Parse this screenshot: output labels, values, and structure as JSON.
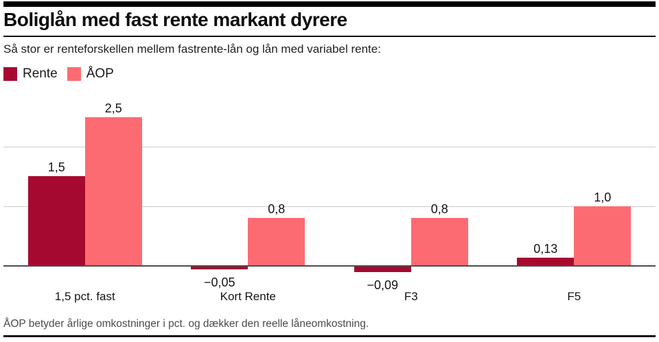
{
  "header": {
    "title": "Boliglån med fast rente markant dyrere",
    "subtitle": "Så stor er renteforskellen mellem fastrente-lån og lån med variabel rente:"
  },
  "legend": {
    "items": [
      {
        "label": "Rente",
        "color": "#a60930"
      },
      {
        "label": "ÅOP",
        "color": "#fd6b72"
      }
    ]
  },
  "chart_data": {
    "type": "bar",
    "title": "Boliglån med fast rente markant dyrere",
    "subtitle": "Så stor er renteforskellen mellem fastrente-lån og lån med variabel rente:",
    "categories": [
      "1,5 pct. fast",
      "Kort Rente",
      "F3",
      "F5"
    ],
    "series": [
      {
        "name": "Rente",
        "color": "#a60930",
        "values": [
          1.5,
          -0.05,
          -0.09,
          0.13
        ],
        "labels": [
          "1,5",
          "−0,05",
          "−0,09",
          "0,13"
        ]
      },
      {
        "name": "ÅOP",
        "color": "#fd6b72",
        "values": [
          2.5,
          0.8,
          0.8,
          1.0
        ],
        "labels": [
          "2,5",
          "0,8",
          "0,8",
          "1,0"
        ]
      }
    ],
    "ylim": [
      -0.35,
      2.95
    ],
    "gridline_values": [
      1,
      2
    ],
    "baseline_value": 0,
    "grid": true,
    "value_labels": true,
    "legend_position": "top-left",
    "xlabel": "",
    "ylabel": ""
  },
  "footer": {
    "note": "ÅOP betyder årlige omkostninger i pct. og dækker den reelle låneomkostning."
  },
  "colors": {
    "rente": "#a60930",
    "aop": "#fd6b72",
    "gridline": "#cccccc",
    "axis_line": "#4d4d4d",
    "accent_bar": "#000000",
    "rules": "#141414"
  }
}
